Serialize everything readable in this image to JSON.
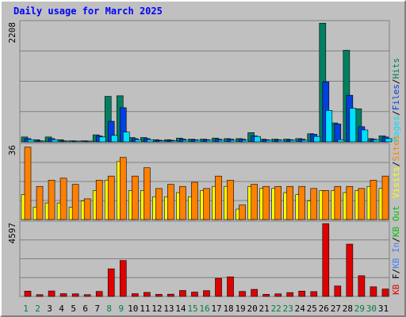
{
  "title": "Daily usage for March 2025",
  "colors": {
    "pages": "#00e0ff",
    "files": "#0040e0",
    "hits": "#008060",
    "visits": "#ffff00",
    "sites": "#ff8000",
    "kb": "#e00000",
    "kb_in": "#4080ff",
    "kb_out": "#00c000",
    "day_normal": "#000000",
    "day_weekend": "#008040"
  },
  "chart_data": [
    {
      "type": "bar",
      "title": "Daily usage for March 2025",
      "categories": [
        "1",
        "2",
        "3",
        "4",
        "5",
        "6",
        "7",
        "8",
        "9",
        "10",
        "11",
        "12",
        "13",
        "14",
        "15",
        "16",
        "17",
        "18",
        "19",
        "20",
        "21",
        "22",
        "23",
        "24",
        "25",
        "26",
        "27",
        "28",
        "29",
        "30",
        "31"
      ],
      "weekend_days": [
        "1",
        "2",
        "8",
        "9",
        "15",
        "16",
        "22",
        "23",
        "29",
        "30"
      ],
      "ymax_label": "2208",
      "ylim": [
        0,
        2208
      ],
      "legend": [
        "Pages",
        "/",
        "Files",
        "/",
        "Hits"
      ],
      "series": [
        {
          "name": "Hits",
          "values": [
            90,
            40,
            90,
            40,
            20,
            20,
            130,
            840,
            850,
            80,
            80,
            40,
            40,
            70,
            50,
            50,
            70,
            60,
            60,
            170,
            50,
            50,
            50,
            60,
            150,
            2190,
            350,
            1690,
            610,
            60,
            110
          ]
        },
        {
          "name": "Files",
          "values": [
            60,
            20,
            60,
            20,
            10,
            10,
            110,
            380,
            630,
            60,
            60,
            30,
            30,
            50,
            40,
            40,
            50,
            50,
            50,
            110,
            40,
            40,
            40,
            50,
            140,
            1110,
            330,
            860,
            280,
            50,
            90
          ]
        },
        {
          "name": "Pages",
          "values": [
            40,
            15,
            40,
            15,
            10,
            10,
            90,
            120,
            180,
            40,
            40,
            20,
            20,
            30,
            30,
            30,
            30,
            30,
            30,
            100,
            30,
            30,
            30,
            30,
            100,
            580,
            40,
            620,
            220,
            40,
            60
          ]
        }
      ]
    },
    {
      "type": "bar",
      "categories": [
        "1",
        "2",
        "3",
        "4",
        "5",
        "6",
        "7",
        "8",
        "9",
        "10",
        "11",
        "12",
        "13",
        "14",
        "15",
        "16",
        "17",
        "18",
        "19",
        "20",
        "21",
        "22",
        "23",
        "24",
        "25",
        "26",
        "27",
        "28",
        "29",
        "30",
        "31"
      ],
      "ymax_label": "36",
      "ylim": [
        0,
        36
      ],
      "legend": [
        "Visits",
        "/",
        "Sites"
      ],
      "series": [
        {
          "name": "Visits",
          "values": [
            12,
            6,
            8,
            8,
            6,
            9,
            14,
            19,
            28,
            14,
            14,
            11,
            11,
            13,
            11,
            14,
            16,
            16,
            5,
            16,
            15,
            15,
            13,
            12,
            9,
            14,
            14,
            13,
            14,
            16,
            15
          ]
        },
        {
          "name": "Sites",
          "values": [
            35,
            16,
            19,
            20,
            17,
            10,
            19,
            21,
            30,
            21,
            25,
            15,
            17,
            16,
            18,
            15,
            21,
            19,
            7,
            17,
            16,
            16,
            16,
            16,
            15,
            14,
            16,
            16,
            15,
            19,
            21
          ]
        }
      ]
    },
    {
      "type": "bar",
      "categories": [
        "1",
        "2",
        "3",
        "4",
        "5",
        "6",
        "7",
        "8",
        "9",
        "10",
        "11",
        "12",
        "13",
        "14",
        "15",
        "16",
        "17",
        "18",
        "19",
        "20",
        "21",
        "22",
        "23",
        "24",
        "25",
        "26",
        "27",
        "28",
        "29",
        "30",
        "31"
      ],
      "ymax_label": "4597",
      "ylim": [
        0,
        4597
      ],
      "legend": [
        "KB",
        "F",
        "/",
        "KB",
        "In",
        "/",
        "KB",
        "Out"
      ],
      "series": [
        {
          "name": "KB F",
          "values": [
            330,
            110,
            340,
            170,
            160,
            110,
            310,
            1720,
            2240,
            170,
            250,
            130,
            140,
            370,
            270,
            360,
            1130,
            1220,
            310,
            440,
            130,
            160,
            240,
            330,
            300,
            4540,
            650,
            3260,
            1290,
            600,
            460
          ]
        }
      ]
    }
  ]
}
